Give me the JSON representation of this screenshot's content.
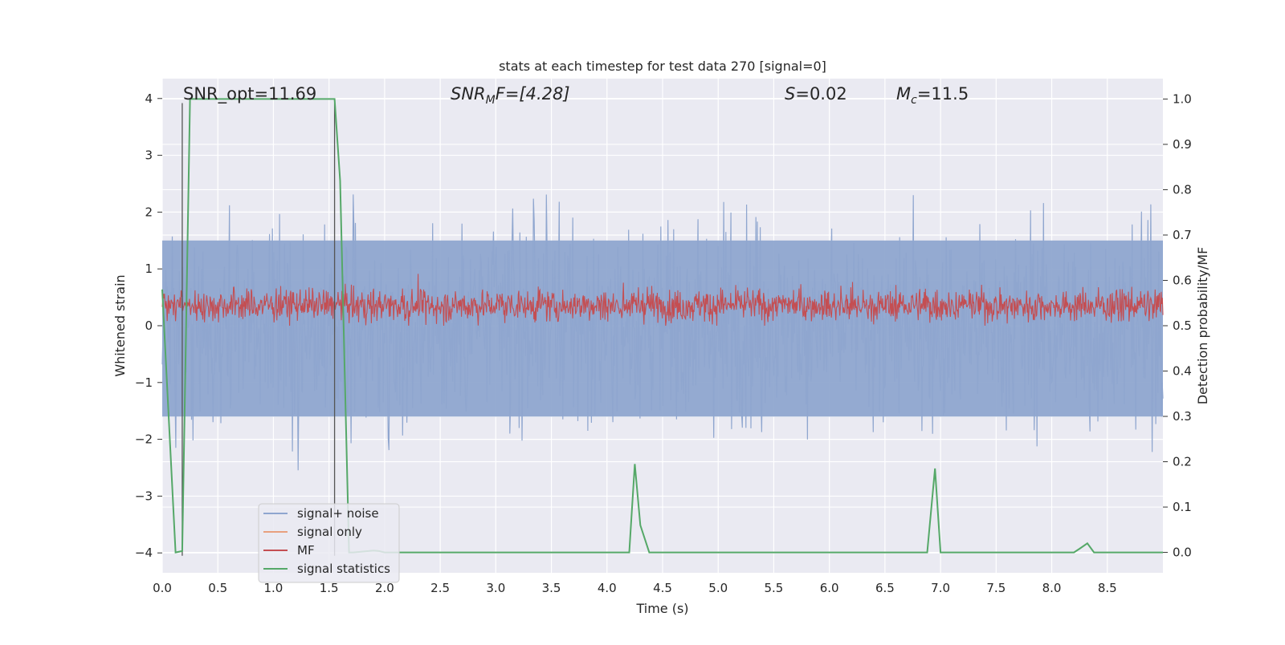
{
  "chart_data": {
    "type": "line",
    "title": "stats at each timestep for test data 270 [signal=0]",
    "xlabel": "Time (s)",
    "ylabel": "Whitened strain",
    "y2label": "Detection probability/MF",
    "xlim": [
      0.0,
      9.0
    ],
    "ylim": [
      -4.35,
      4.35
    ],
    "y2lim": [
      -0.045,
      1.045
    ],
    "xticks": [
      "0.0",
      "0.5",
      "1.0",
      "1.5",
      "2.0",
      "2.5",
      "3.0",
      "3.5",
      "4.0",
      "4.5",
      "5.0",
      "5.5",
      "6.0",
      "6.5",
      "7.0",
      "7.5",
      "8.0",
      "8.5"
    ],
    "yticks": [
      "4",
      "3",
      "2",
      "1",
      "0",
      "−1",
      "−2",
      "−3",
      "−4"
    ],
    "y2ticks": [
      "1.0",
      "0.9",
      "0.8",
      "0.7",
      "0.6",
      "0.5",
      "0.4",
      "0.3",
      "0.2",
      "0.1",
      "0.0"
    ],
    "grid": true,
    "legend_position": "lower-left",
    "annotations": {
      "snr_opt": "SNR_opt=11.69",
      "snr_mf_base": "SNR",
      "snr_mf_sub": "M",
      "snr_mf_rest": "F=[4.28]",
      "s_value": "=0.02",
      "s_base": "S",
      "mc_base": "M",
      "mc_sub": "c",
      "mc_rest": "=11.5"
    },
    "colors": {
      "background": "#eaeaf2",
      "grid": "#ffffff",
      "signal_noise": "#8fa6cf",
      "signal_only": "#e8a07e",
      "mf": "#c44e52",
      "signal_statistics": "#55a868",
      "vline": "#555555"
    },
    "series": [
      {
        "name": "signal+ noise",
        "description_type": "noise",
        "amplitude_band": [
          -1.6,
          1.5
        ],
        "peak_range": [
          -3.9,
          3.9
        ]
      },
      {
        "name": "signal only",
        "values": []
      },
      {
        "name": "MF",
        "axis": "y2",
        "level_range": [
          0.5,
          0.6
        ]
      },
      {
        "name": "signal statistics",
        "axis": "y2",
        "x": [
          0.0,
          0.12,
          0.18,
          0.25,
          1.55,
          1.6,
          1.68,
          1.72,
          1.9,
          1.95,
          2.0,
          4.2,
          4.25,
          4.3,
          4.38,
          6.88,
          6.95,
          7.0,
          8.2,
          8.25,
          8.32,
          8.38,
          9.0
        ],
        "y": [
          0.58,
          0.0,
          0.003,
          1.0,
          1.0,
          0.82,
          0.0,
          0.0,
          0.004,
          0.003,
          0.0,
          0.0,
          0.195,
          0.06,
          0.0,
          0.0,
          0.185,
          0.0,
          0.0,
          0.008,
          0.02,
          0.0,
          0.0
        ]
      }
    ],
    "vlines": [
      0.18,
      1.55
    ],
    "legend": [
      "signal+ noise",
      "signal only",
      "MF",
      "signal statistics"
    ]
  }
}
